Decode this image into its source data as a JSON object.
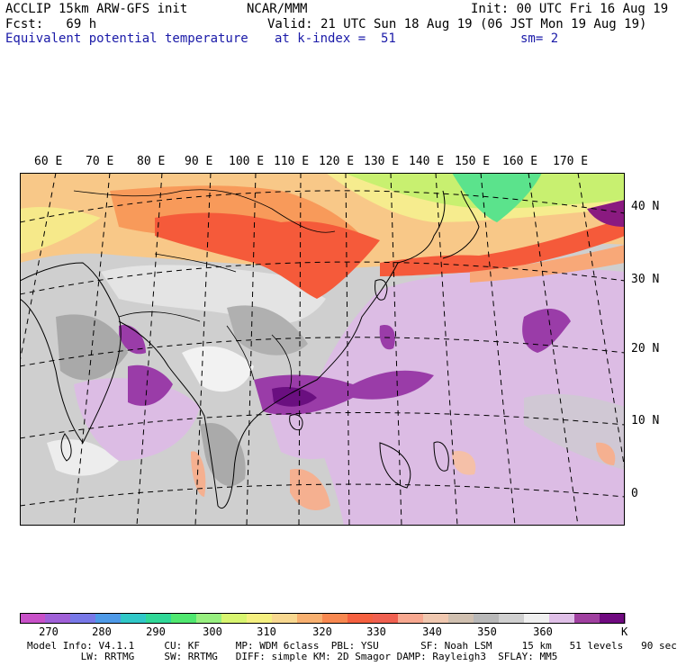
{
  "header": {
    "model_title": "ACCLIP 15km ARW-GFS init",
    "org": "NCAR/MMM",
    "init": "Init: 00 UTC Fri 16 Aug 19",
    "forecast": "Fcst:   69 h",
    "valid": "Valid: 21 UTC Sun 18 Aug 19 (06 JST Mon 19 Aug 19)",
    "field": "Equivalent potential temperature",
    "level": "at k-index =  51",
    "smoothing": "sm= 2"
  },
  "map": {
    "lon_labels": [
      "60 E",
      "70 E",
      "80 E",
      "90 E",
      "100 E",
      "110 E",
      "120 E",
      "130 E",
      "140 E",
      "150 E",
      "160 E",
      "170 E"
    ],
    "lat_labels": [
      "40 N",
      "30 N",
      "20 N",
      "10 N",
      "0"
    ],
    "colors": {
      "cold_green": "#5be38c",
      "yellow_green": "#c8f070",
      "yellow": "#f6e98a",
      "light_orange": "#f8c888",
      "orange": "#f89a5a",
      "red": "#f55a3a",
      "salmon": "#f5b090",
      "gray_dark": "#a8a8a8",
      "gray_mid": "#c8c8c8",
      "gray_light": "#dedede",
      "white": "#f4f4f4",
      "lilac": "#dab8e2",
      "purple": "#9a3ca8",
      "dark_purple": "#6a0f80"
    }
  },
  "colorbar": {
    "unit": "K",
    "tick_labels": [
      "270",
      "280",
      "290",
      "300",
      "310",
      "320",
      "330",
      "340",
      "350",
      "360"
    ],
    "colors": [
      "#c850c8",
      "#a060d8",
      "#7878e8",
      "#4e9ae8",
      "#30c8c8",
      "#30d898",
      "#50e870",
      "#98f080",
      "#d8f570",
      "#f5f080",
      "#f8d890",
      "#f8b070",
      "#f88850",
      "#f56040",
      "#f06050",
      "#f8a890",
      "#f0c8b0",
      "#d0c0b0",
      "#b8b8b8",
      "#d0d0d0",
      "#f0f0f0",
      "#e0c0e8",
      "#a040a0",
      "#700a80"
    ]
  },
  "footer": {
    "line1": "Model Info: V4.1.1     CU: KF      MP: WDM 6class  PBL: YSU       SF: Noah LSM     15 km   51 levels   90 sec",
    "line2": "         LW: RRTMG     SW: RRTMG   DIFF: simple KM: 2D Smagor DAMP: Rayleigh3  SFLAY: MM5"
  }
}
